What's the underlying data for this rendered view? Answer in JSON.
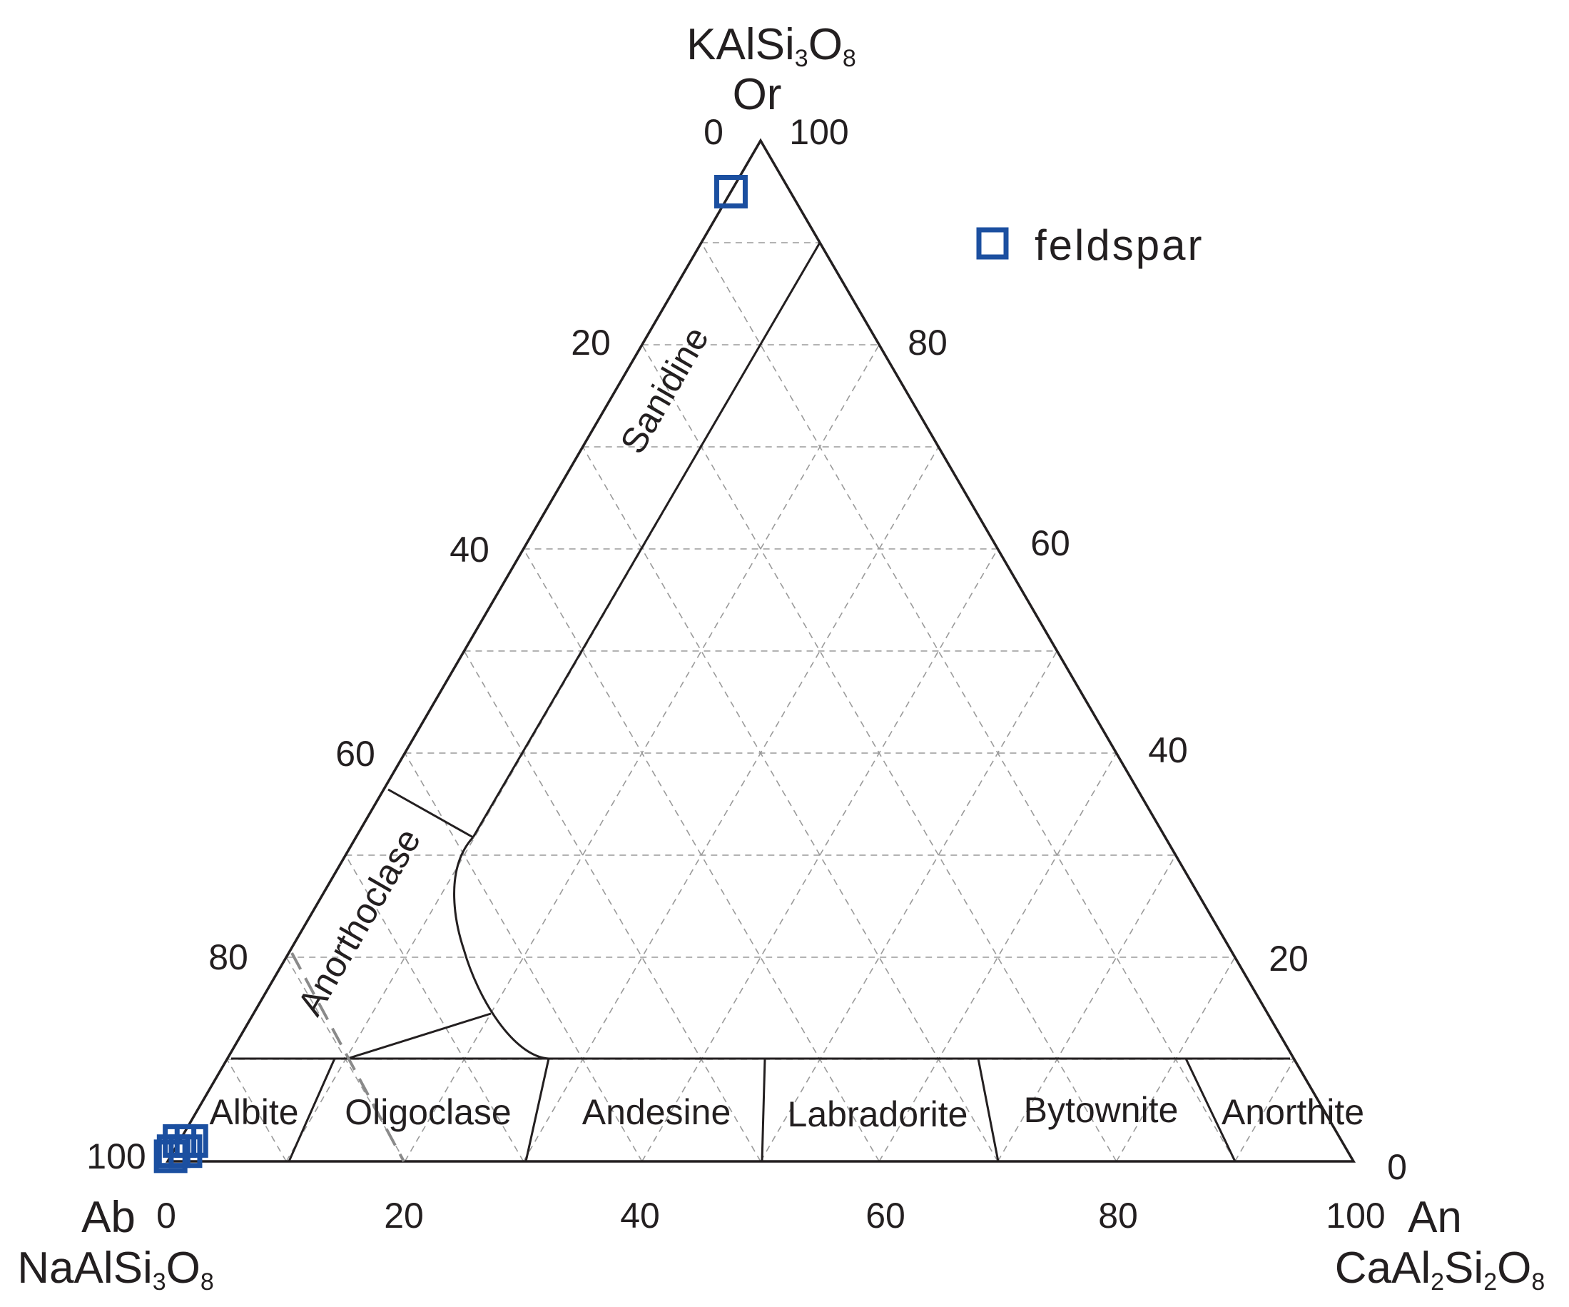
{
  "colors": {
    "marker": "#1b4fa0",
    "line": "#231f20",
    "grid": "#9a9a9a"
  },
  "legend": {
    "label": "feldspar",
    "marker": "open-square"
  },
  "corners": {
    "top": {
      "formula_base": "KAlSi",
      "sub1": "3",
      "mid": "O",
      "sub2": "8",
      "abbr": "Or"
    },
    "left": {
      "formula_base": "NaAlSi",
      "sub1": "3",
      "mid": "O",
      "sub2": "8",
      "abbr": "Ab"
    },
    "right": {
      "formula_base": "CaAl",
      "sub1": "2",
      "mid": "Si",
      "sub2": "2",
      "tail": "O",
      "sub3": "8",
      "abbr": "An"
    }
  },
  "axes": {
    "bottom": [
      "0",
      "20",
      "40",
      "60",
      "80",
      "100"
    ],
    "left": [
      "0",
      "20",
      "40",
      "60",
      "80",
      "100"
    ],
    "right": [
      "100",
      "80",
      "60",
      "40",
      "20",
      "0"
    ]
  },
  "fields": [
    "Sanidine",
    "Anorthoclase",
    "Albite",
    "Oligoclase",
    "Andesine",
    "Labradorite",
    "Bytownite",
    "Anorthite"
  ],
  "chart_data": {
    "type": "scatter",
    "subtype": "ternary",
    "components": [
      "Ab",
      "An",
      "Or"
    ],
    "grid": true,
    "legend_position": "top-right",
    "series": [
      {
        "name": "feldspar",
        "marker": "open-square",
        "points": [
          {
            "Ab": 5,
            "An": 0,
            "Or": 95
          },
          {
            "Ab": 99,
            "An": 0,
            "Or": 1
          },
          {
            "Ab": 98,
            "An": 1,
            "Or": 1
          },
          {
            "Ab": 98,
            "An": 0,
            "Or": 2
          },
          {
            "Ab": 99.5,
            "An": 0,
            "Or": 0.5
          },
          {
            "Ab": 97,
            "An": 1,
            "Or": 2
          }
        ]
      }
    ]
  }
}
